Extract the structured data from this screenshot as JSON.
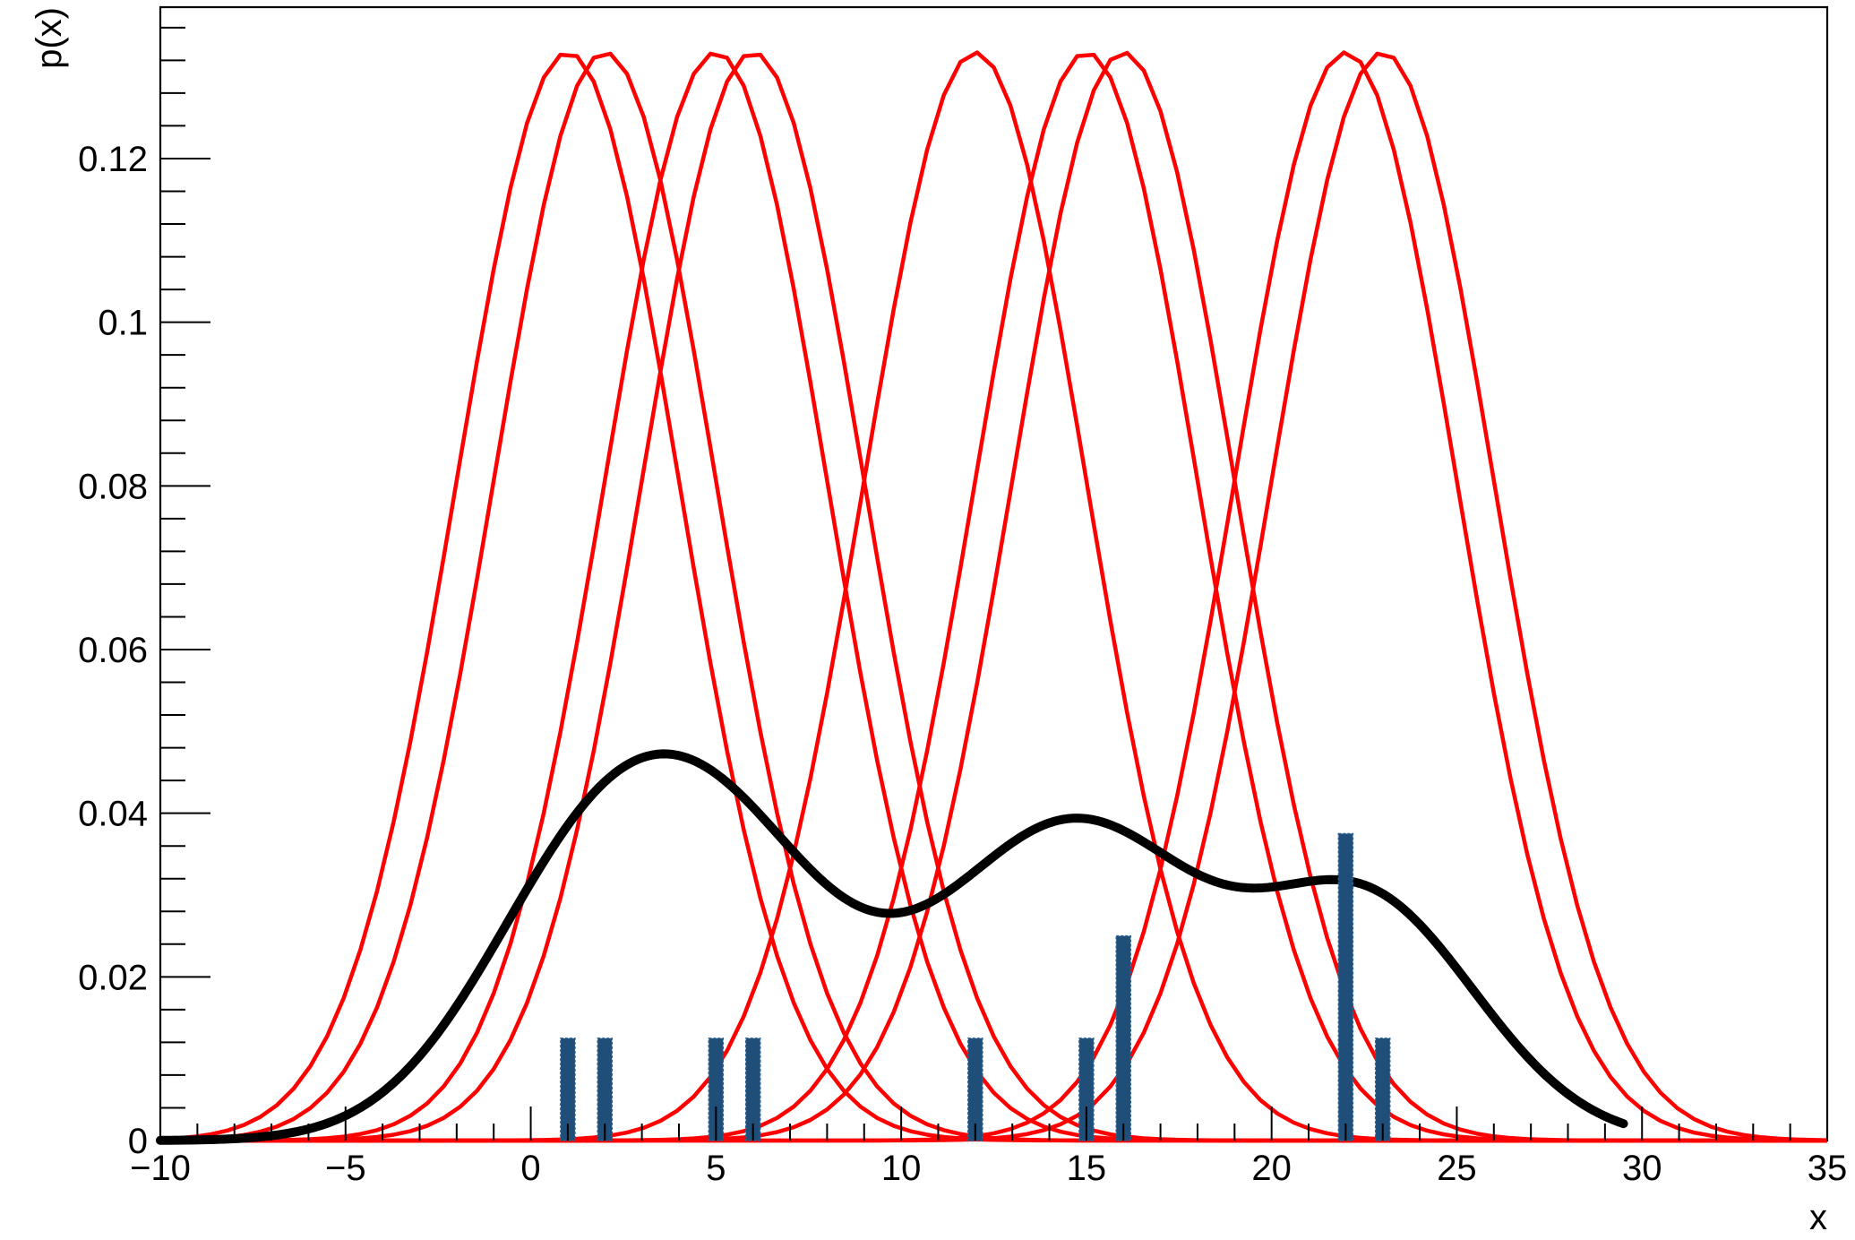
{
  "chart_data": {
    "type": "line",
    "title": "",
    "xlabel": "x",
    "ylabel": "p(x)",
    "xlim": [
      -10,
      35
    ],
    "ylim": [
      0,
      0.1385
    ],
    "x_ticks": [
      -10,
      -5,
      0,
      5,
      10,
      15,
      20,
      25,
      30,
      35
    ],
    "x_tick_labels": [
      "−10",
      "−5",
      "0",
      "5",
      "10",
      "15",
      "20",
      "25",
      "30",
      "35"
    ],
    "y_ticks": [
      0,
      0.02,
      0.04,
      0.06,
      0.08,
      0.1,
      0.12
    ],
    "y_tick_labels": [
      "0",
      "0.02",
      "0.04",
      "0.06",
      "0.08",
      "0.1",
      "0.12"
    ],
    "grid": false,
    "legend": "none",
    "kernel_sigma": 3,
    "kernel_curve_range": [
      -10,
      35
    ],
    "kernel_centers": [
      1,
      2,
      5,
      6,
      12,
      15,
      16,
      22,
      23
    ],
    "kernel_color": "#ff0000",
    "density_color": "#000000",
    "density_curve_range": [
      -10,
      29.5
    ],
    "data_points": [
      {
        "x": 1,
        "count": 1
      },
      {
        "x": 2,
        "count": 1
      },
      {
        "x": 5,
        "count": 1
      },
      {
        "x": 6,
        "count": 1
      },
      {
        "x": 12,
        "count": 1
      },
      {
        "x": 15,
        "count": 1
      },
      {
        "x": 16,
        "count": 2
      },
      {
        "x": 22,
        "count": 3
      },
      {
        "x": 23,
        "count": 1
      }
    ],
    "data_marker_height_per_count": 0.0125,
    "data_marker_color": "#1f4e79"
  }
}
